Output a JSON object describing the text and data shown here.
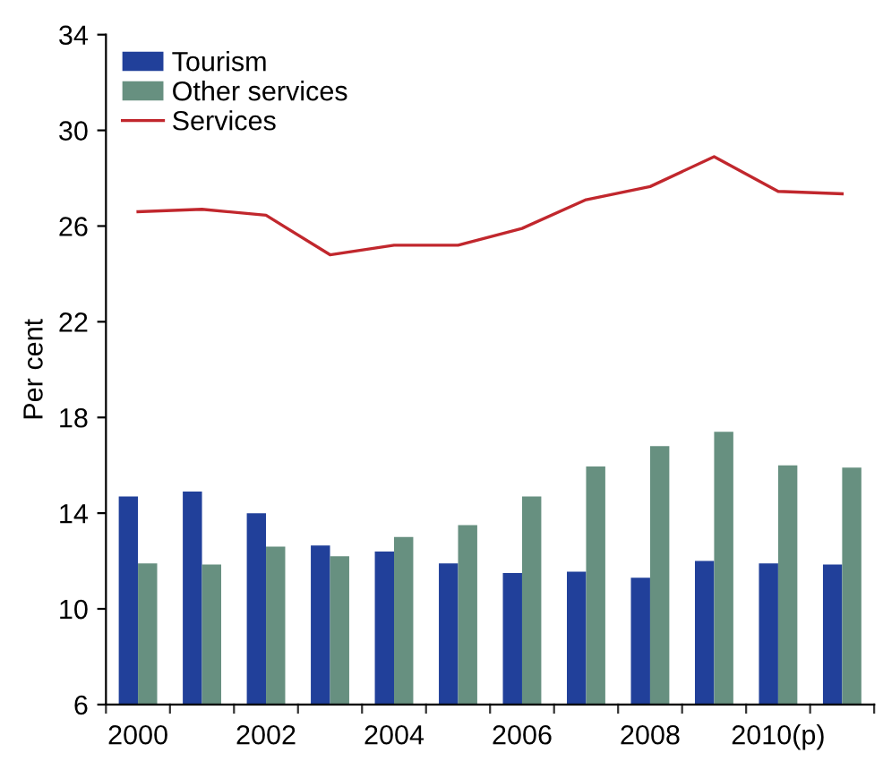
{
  "chart_data": {
    "type": "bar",
    "ylabel": "Per cent",
    "categories": [
      "2000",
      null,
      "2002",
      null,
      "2004",
      null,
      "2006",
      null,
      "2008",
      null,
      "2010(p)",
      null
    ],
    "series": [
      {
        "name": "Tourism",
        "color": "#21409a",
        "values": [
          14.7,
          14.9,
          14.0,
          12.65,
          12.4,
          11.9,
          11.5,
          11.55,
          11.3,
          12.0,
          11.9,
          11.85
        ]
      },
      {
        "name": "Other services",
        "color": "#679080",
        "values": [
          11.9,
          11.85,
          12.6,
          12.2,
          13.0,
          13.5,
          14.7,
          15.95,
          16.8,
          17.4,
          16.0,
          15.9
        ]
      },
      {
        "name": "Services",
        "type": "line",
        "color": "#c1272d",
        "values": [
          26.6,
          26.7,
          26.45,
          24.8,
          25.2,
          25.2,
          25.9,
          27.1,
          27.65,
          28.9,
          27.45,
          27.35
        ]
      }
    ],
    "ylim": [
      6,
      34
    ],
    "yticks": [
      6,
      10,
      14,
      18,
      22,
      26,
      30,
      34
    ],
    "grid": false,
    "legend": "top left"
  }
}
